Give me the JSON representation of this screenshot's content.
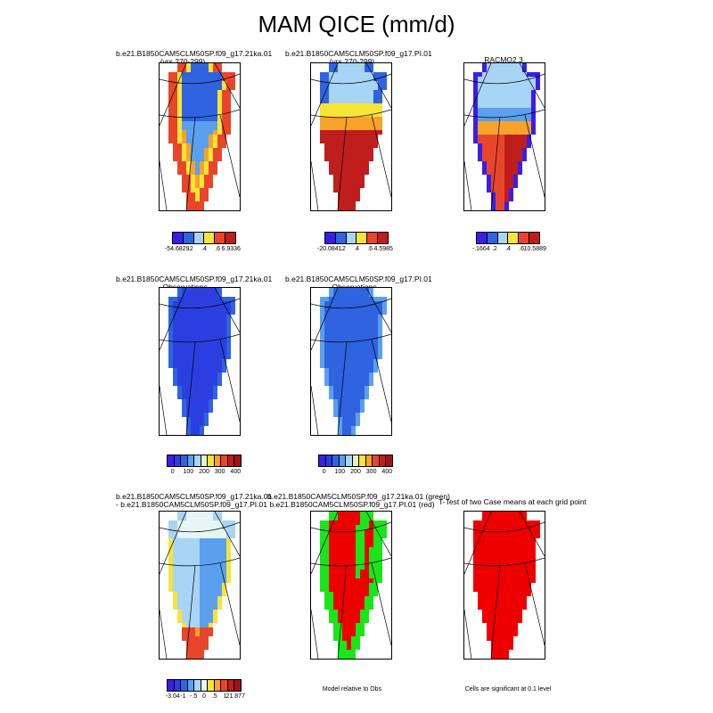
{
  "title": "MAM QICE (mm/d)",
  "colors": {
    "scale_a": [
      "#3a1ee6",
      "#2f63e0",
      "#5aa0ee",
      "#a8d4f5",
      "#f7e438",
      "#f7a22b",
      "#e8462a",
      "#c01d1d"
    ],
    "scale_obs": [
      "#3a1ee6",
      "#2b3fe0",
      "#2f63e0",
      "#5aa0ee",
      "#a8d4f5",
      "#e6f0c8",
      "#f7e438",
      "#f7a22b",
      "#e8462a",
      "#c01d1d",
      "#a01313"
    ],
    "diff": [
      "#3a1ee6",
      "#2b3fe0",
      "#2f63e0",
      "#5aa0ee",
      "#a8d4f5",
      "#e6f5f5",
      "#f7e438",
      "#f7a22b",
      "#e8462a",
      "#c01d1d",
      "#a01313"
    ],
    "green": "#19e619",
    "red": "#ee0000"
  },
  "row1": {
    "panel1": {
      "title_line1": "b.e21.B1850CAM5CLM50SP.f09_g17.21ka.01",
      "title_line2": "(yrs 270-299)",
      "cbar_labels": [
        "-54.6829",
        ".2",
        ".4",
        ".6",
        "6.9336"
      ]
    },
    "panel2": {
      "title_line1": "b.e21.B1850CAM5CLM50SP.f09_g17.PI.01",
      "title_line2": "(yrs 270-299)",
      "cbar_labels": [
        "-20.0841",
        ".2",
        ".4",
        ".6",
        "4.5985"
      ]
    },
    "panel3": {
      "title_line1": "RACMO2.3",
      "cbar_labels": [
        "-.1664",
        ".2",
        ".4",
        ".6",
        "10.5889"
      ]
    }
  },
  "row2": {
    "panel1": {
      "title_line1": "b.e21.B1850CAM5CLM50SP.f09_g17.21ka.01",
      "title_line2": "- Observations",
      "cbar_labels": [
        "0",
        "100",
        "200",
        "300",
        "400"
      ]
    },
    "panel2": {
      "title_line1": "b.e21.B1850CAM5CLM50SP.f09_g17.PI.01",
      "title_line2": "- Observations",
      "cbar_labels": [
        "0",
        "100",
        "200",
        "300",
        "400"
      ]
    }
  },
  "row3": {
    "panel1": {
      "title_line1": "b.e21.B1850CAM5CLM50SP.f09_g17.21ka.01",
      "title_line2": "- b.e21.B1850CAM5CLM50SP.f09_g17.PI.01",
      "cbar_labels": [
        "-3.04",
        "-1",
        "-.5",
        "0",
        ".5",
        "1",
        "21.877"
      ]
    },
    "panel2": {
      "title_line1": "b.e21.B1850CAM5CLM50SP.f09_g17.21ka.01 (green)",
      "title_line2": "b.e21.B1850CAM5CLM50SP.f09_g17.PI.01 (red)",
      "note": "Model relative to Obs"
    },
    "panel3": {
      "title_line1": "T-Test of two Case means at each grid point",
      "note": "Cells are significant at 0.1 level"
    }
  }
}
